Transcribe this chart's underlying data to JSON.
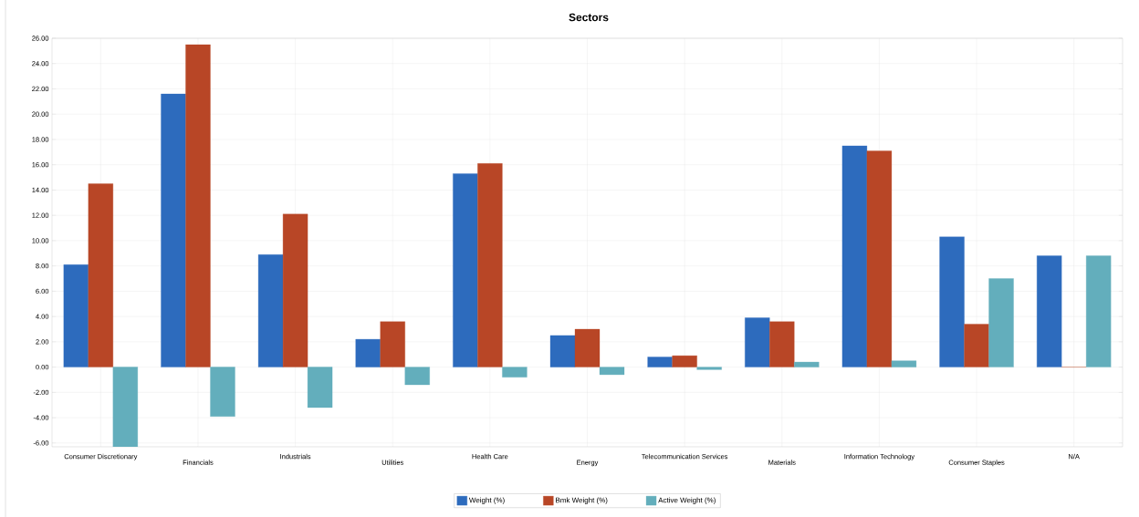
{
  "chart_data": {
    "type": "bar",
    "title": "Sectors",
    "categories": [
      "Consumer Discretionary",
      "Financials",
      "Industrials",
      "Utilities",
      "Health Care",
      "Energy",
      "Telecommunication Services",
      "Materials",
      "Information Technology",
      "Consumer Staples",
      "N/A"
    ],
    "series": [
      {
        "name": "Weight (%)",
        "color": "#2d6bbd",
        "values": [
          8.1,
          21.6,
          8.9,
          2.2,
          15.3,
          2.5,
          0.8,
          3.9,
          17.5,
          10.3,
          8.8
        ]
      },
      {
        "name": "Bmk Weight (%)",
        "color": "#b84626",
        "values": [
          14.5,
          25.5,
          12.1,
          3.6,
          16.1,
          3.0,
          0.9,
          3.6,
          17.1,
          3.4,
          0.0
        ]
      },
      {
        "name": "Active Weight (%)",
        "color": "#63aebc",
        "values": [
          -6.3,
          -3.9,
          -3.2,
          -1.4,
          -0.8,
          -0.6,
          -0.2,
          0.4,
          0.5,
          7.0,
          8.8
        ]
      }
    ],
    "ylim": [
      -6.3,
      26
    ],
    "yticks": [
      {
        "value": -6,
        "label": "-6.00"
      },
      {
        "value": -4,
        "label": "-4.00"
      },
      {
        "value": -2,
        "label": "-2.00"
      },
      {
        "value": 0,
        "label": "0.00"
      },
      {
        "value": 2,
        "label": "2.00"
      },
      {
        "value": 4,
        "label": "4.00"
      },
      {
        "value": 6,
        "label": "6.00"
      },
      {
        "value": 8,
        "label": "8.00"
      },
      {
        "value": 10,
        "label": "10.00"
      },
      {
        "value": 12,
        "label": "12.00"
      },
      {
        "value": 14,
        "label": "14.00"
      },
      {
        "value": 16,
        "label": "16.00"
      },
      {
        "value": 18,
        "label": "18.00"
      },
      {
        "value": 20,
        "label": "20.00"
      },
      {
        "value": 22,
        "label": "22.00"
      },
      {
        "value": 24,
        "label": "24.00"
      },
      {
        "value": 26,
        "label": "26.00"
      }
    ],
    "grid": true,
    "legend": "bottom"
  }
}
